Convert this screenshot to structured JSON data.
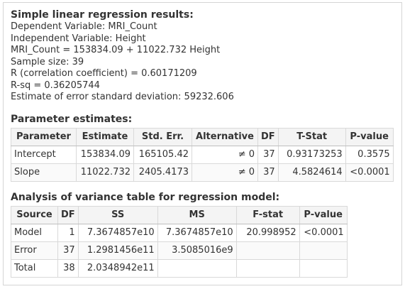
{
  "summary": {
    "title": "Simple linear regression results:",
    "lines": [
      "Dependent Variable: MRI_Count",
      "Independent Variable: Height",
      "MRI_Count = 153834.09 + 11022.732 Height",
      "Sample size: 39",
      "R (correlation coefficient) = 0.60171209",
      "R-sq = 0.36205744",
      "Estimate of error standard deviation: 59232.606"
    ]
  },
  "parameters": {
    "title": "Parameter estimates:",
    "headers": [
      "Parameter",
      "Estimate",
      "Std. Err.",
      "Alternative",
      "DF",
      "T-Stat",
      "P-value"
    ],
    "rows": [
      [
        "Intercept",
        "153834.09",
        "165105.42",
        "≠ 0",
        "37",
        "0.93173253",
        "0.3575"
      ],
      [
        "Slope",
        "11022.732",
        "2405.4173",
        "≠ 0",
        "37",
        "4.5824614",
        "<0.0001"
      ]
    ]
  },
  "anova": {
    "title": "Analysis of variance table for regression model:",
    "headers": [
      "Source",
      "DF",
      "SS",
      "MS",
      "F-stat",
      "P-value"
    ],
    "rows": [
      [
        "Model",
        "1",
        "7.3674857e10",
        "7.3674857e10",
        "20.998952",
        "<0.0001"
      ],
      [
        "Error",
        "37",
        "1.2981456e11",
        "3.5085016e9",
        "",
        ""
      ],
      [
        "Total",
        "38",
        "2.0348942e11",
        "",
        "",
        ""
      ]
    ]
  }
}
